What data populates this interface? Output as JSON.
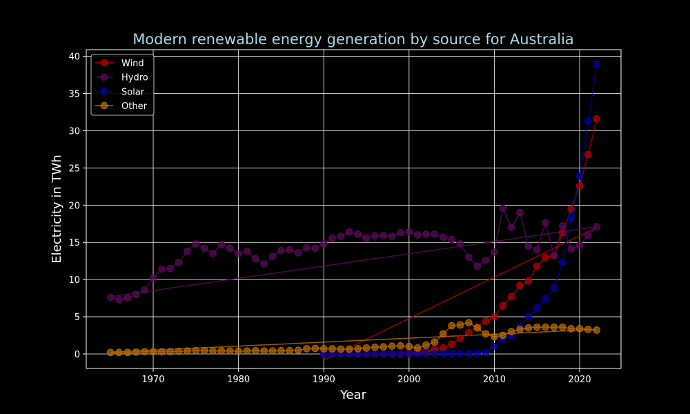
{
  "chart_data": {
    "type": "line",
    "title": "Modern renewable energy generation by source for Australia",
    "xlabel": "Year",
    "ylabel": "Electricity in TWh",
    "xlim": [
      1962.15,
      2024.85
    ],
    "ylim": [
      -1.95,
      40.9
    ],
    "xticks": [
      1970,
      1980,
      1990,
      2000,
      2010,
      2020
    ],
    "yticks": [
      0,
      5,
      10,
      15,
      20,
      25,
      30,
      35,
      40
    ],
    "grid": true,
    "legend_position": "upper-left",
    "series": [
      {
        "name": "Wind",
        "color": "#b20000",
        "x": [
          1990,
          1991,
          1992,
          1993,
          1994,
          1995,
          1996,
          1997,
          1998,
          1999,
          2000,
          2001,
          2002,
          2003,
          2004,
          2005,
          2006,
          2007,
          2008,
          2009,
          2010,
          2011,
          2012,
          2013,
          2014,
          2015,
          2016,
          2017,
          2018,
          2019,
          2020,
          2021,
          2022
        ],
        "y": [
          0,
          0,
          0,
          0,
          0,
          0,
          0,
          0,
          0,
          0.01,
          0.06,
          0.2,
          0.3,
          0.6,
          0.8,
          1.3,
          2.1,
          2.9,
          3.6,
          4.4,
          5.0,
          6.5,
          7.7,
          9.2,
          9.8,
          11.8,
          13.0,
          13.2,
          16.3,
          19.5,
          22.6,
          26.8,
          31.6
        ],
        "trend": [
          -0.8,
          17.0
        ]
      },
      {
        "name": "Hydro",
        "color": "#5a0a5a",
        "x": [
          1965,
          1966,
          1967,
          1968,
          1969,
          1970,
          1971,
          1972,
          1973,
          1974,
          1975,
          1976,
          1977,
          1978,
          1979,
          1980,
          1981,
          1982,
          1983,
          1984,
          1985,
          1986,
          1987,
          1988,
          1989,
          1990,
          1991,
          1992,
          1993,
          1994,
          1995,
          1996,
          1997,
          1998,
          1999,
          2000,
          2001,
          2002,
          2003,
          2004,
          2005,
          2006,
          2007,
          2008,
          2009,
          2010,
          2011,
          2012,
          2013,
          2014,
          2015,
          2016,
          2017,
          2018,
          2019,
          2020,
          2021,
          2022
        ],
        "y": [
          7.6,
          7.3,
          7.5,
          8.0,
          8.6,
          10.2,
          11.4,
          11.5,
          12.3,
          13.8,
          14.8,
          14.2,
          13.5,
          14.7,
          14.2,
          13.5,
          13.8,
          12.8,
          12.1,
          13.1,
          13.9,
          14.0,
          13.6,
          14.3,
          14.2,
          14.8,
          15.6,
          15.8,
          16.4,
          16.1,
          15.6,
          15.9,
          15.9,
          15.8,
          16.3,
          16.4,
          16.0,
          16.1,
          16.1,
          15.7,
          15.4,
          14.8,
          13.0,
          11.8,
          12.6,
          13.7,
          19.6,
          17.0,
          19.0,
          14.5,
          14.0,
          17.6,
          13.2,
          17.2,
          14.1,
          14.6,
          15.9,
          17.1
        ],
        "trend": [
          7.7,
          17.1
        ]
      },
      {
        "name": "Solar",
        "color": "#0000a8",
        "x": [
          1990,
          1991,
          1992,
          1993,
          1994,
          1995,
          1996,
          1997,
          1998,
          1999,
          2000,
          2001,
          2002,
          2003,
          2004,
          2005,
          2006,
          2007,
          2008,
          2009,
          2010,
          2011,
          2012,
          2013,
          2014,
          2015,
          2016,
          2017,
          2018,
          2019,
          2020,
          2021,
          2022
        ],
        "y": [
          0,
          0,
          0,
          0,
          0,
          0,
          0,
          0,
          0,
          0,
          0,
          0.05,
          0.05,
          0.05,
          0.05,
          0.05,
          0.05,
          0.05,
          0.1,
          0.2,
          1.0,
          2.0,
          2.4,
          3.7,
          5.0,
          6.2,
          7.4,
          8.9,
          12.3,
          18.3,
          23.9,
          31.3,
          38.9
        ],
        "trend": null
      },
      {
        "name": "Other",
        "color": "#b86a00",
        "x": [
          1965,
          1966,
          1967,
          1968,
          1969,
          1970,
          1971,
          1972,
          1973,
          1974,
          1975,
          1976,
          1977,
          1978,
          1979,
          1980,
          1981,
          1982,
          1983,
          1984,
          1985,
          1986,
          1987,
          1988,
          1989,
          1990,
          1991,
          1992,
          1993,
          1994,
          1995,
          1996,
          1997,
          1998,
          1999,
          2000,
          2001,
          2002,
          2003,
          2004,
          2005,
          2006,
          2007,
          2008,
          2009,
          2010,
          2011,
          2012,
          2013,
          2014,
          2015,
          2016,
          2017,
          2018,
          2019,
          2020,
          2021,
          2022
        ],
        "y": [
          0.2,
          0.2,
          0.2,
          0.25,
          0.3,
          0.3,
          0.3,
          0.3,
          0.35,
          0.4,
          0.45,
          0.45,
          0.4,
          0.4,
          0.4,
          0.35,
          0.4,
          0.45,
          0.4,
          0.4,
          0.45,
          0.45,
          0.5,
          0.7,
          0.75,
          0.7,
          0.7,
          0.65,
          0.65,
          0.7,
          0.8,
          0.9,
          0.95,
          1.05,
          1.1,
          1.0,
          0.8,
          1.2,
          1.6,
          2.7,
          3.8,
          3.9,
          4.2,
          3.5,
          2.7,
          2.3,
          2.5,
          3.0,
          3.3,
          3.5,
          3.6,
          3.6,
          3.6,
          3.6,
          3.4,
          3.4,
          3.3,
          3.2
        ],
        "trend": [
          0.25,
          3.3
        ]
      }
    ]
  }
}
